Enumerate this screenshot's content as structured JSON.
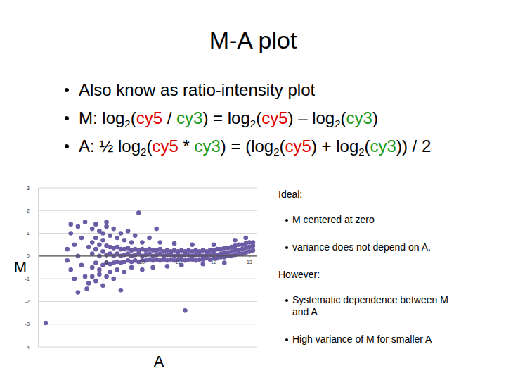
{
  "title": "M-A plot",
  "bullets": [
    [
      {
        "text": "Also know as ratio-intensity plot"
      }
    ],
    [
      {
        "text": "M: log"
      },
      {
        "text": "2",
        "sub": true
      },
      {
        "text": "("
      },
      {
        "text": "cy5",
        "color": "#e00000"
      },
      {
        "text": " / "
      },
      {
        "text": "cy3",
        "color": "#1a9a1a"
      },
      {
        "text": ") = log"
      },
      {
        "text": "2",
        "sub": true
      },
      {
        "text": "("
      },
      {
        "text": "cy5",
        "color": "#e00000"
      },
      {
        "text": ") – log"
      },
      {
        "text": "2",
        "sub": true
      },
      {
        "text": "("
      },
      {
        "text": "cy3",
        "color": "#1a9a1a"
      },
      {
        "text": ")"
      }
    ],
    [
      {
        "text": "A: ½ log"
      },
      {
        "text": "2",
        "sub": true
      },
      {
        "text": "("
      },
      {
        "text": "cy5",
        "color": "#e00000"
      },
      {
        "text": " * "
      },
      {
        "text": "cy3",
        "color": "#1a9a1a"
      },
      {
        "text": ") = (log"
      },
      {
        "text": "2",
        "sub": true
      },
      {
        "text": "("
      },
      {
        "text": "cy5",
        "color": "#e00000"
      },
      {
        "text": ") + log"
      },
      {
        "text": "2",
        "sub": true
      },
      {
        "text": "("
      },
      {
        "text": "cy3",
        "color": "#1a9a1a"
      },
      {
        "text": ")) / 2"
      }
    ]
  ],
  "notes": [
    {
      "heading": "Ideal:",
      "items": [
        "M centered at zero",
        "variance does not depend on A."
      ]
    },
    {
      "heading": "However:",
      "items": [
        "Systematic dependence between M and A",
        "High variance of M for smaller A"
      ]
    }
  ],
  "chart_data": {
    "type": "scatter",
    "x_label": "A",
    "y_label": "M",
    "color": "#6b5ca5",
    "marker": "circle",
    "grid": true,
    "xlim": [
      7.1,
      13.2
    ],
    "xticks": [
      9,
      10,
      11,
      12,
      13
    ],
    "ylim": [
      -4,
      3
    ],
    "yticks": [
      -4,
      -3,
      -2,
      -1,
      0,
      1,
      2,
      3
    ],
    "x": [
      8.6,
      8.6,
      8.6,
      8.7,
      8.7,
      8.7,
      8.8,
      8.8,
      8.8,
      8.9,
      8.9,
      8.9,
      9.0,
      9.0,
      9.0,
      9.1,
      9.1,
      9.1,
      9.2,
      9.2,
      9.2,
      9.3,
      9.3,
      9.3,
      9.4,
      9.4,
      9.4,
      9.5,
      9.5,
      9.5,
      9.6,
      9.6,
      9.6,
      9.7,
      9.7,
      9.7,
      9.8,
      9.8,
      9.8,
      9.9,
      9.9,
      9.9,
      10.0,
      10.0,
      10.0,
      10.1,
      10.1,
      10.1,
      10.2,
      10.2,
      10.2,
      10.3,
      10.3,
      10.3,
      10.4,
      10.4,
      10.4,
      10.5,
      10.5,
      10.5,
      10.6,
      10.6,
      10.6,
      10.7,
      10.7,
      10.7,
      10.8,
      10.8,
      10.8,
      10.9,
      10.9,
      10.9,
      11.0,
      11.0,
      11.0,
      11.1,
      11.1,
      11.1,
      11.2,
      11.2,
      11.2,
      11.3,
      11.3,
      11.3,
      11.4,
      11.4,
      11.4,
      11.5,
      11.5,
      11.5,
      11.6,
      11.6,
      11.6,
      11.7,
      11.7,
      11.7,
      11.8,
      11.8,
      11.8,
      11.9,
      11.9,
      11.9,
      12.0,
      12.0,
      12.0,
      12.1,
      12.1,
      12.1,
      12.2,
      12.2,
      12.2,
      12.3,
      12.3,
      12.3,
      12.4,
      12.4,
      12.4,
      12.5,
      12.5,
      12.5,
      12.6,
      12.6,
      12.6,
      12.7,
      12.7,
      12.7,
      12.8,
      12.8,
      12.8,
      12.9,
      12.9,
      12.9,
      13.0,
      13.0,
      13.0,
      13.1,
      13.1,
      13.1,
      7.3,
      11.2,
      9.9,
      7.9,
      7.9,
      8.0,
      8.0,
      8.1,
      8.1,
      8.2,
      8.2,
      8.3,
      8.3,
      8.4,
      8.4,
      8.45,
      8.5,
      8.5,
      8.6,
      8.6,
      8.7,
      8.7,
      8.8,
      8.8,
      8.9,
      8.9,
      9.0,
      9.0,
      9.1,
      9.1,
      9.2,
      9.2,
      9.3,
      9.3,
      9.4,
      9.5,
      9.5,
      9.6,
      9.7,
      9.7,
      9.8,
      10.0,
      10.0,
      10.2,
      10.3,
      10.5,
      10.7,
      10.9,
      11.1,
      11.4,
      11.7,
      12.0,
      12.3,
      12.6,
      12.9,
      9.4,
      8.2,
      10.4,
      8.0,
      9.0
    ],
    "values": [
      -0.5,
      0.1,
      0.6,
      -0.3,
      0.3,
      0.8,
      -0.6,
      0.0,
      0.5,
      -0.4,
      0.2,
      0.7,
      -0.3,
      0.05,
      0.45,
      -0.35,
      0.1,
      0.4,
      -0.3,
      0.0,
      0.35,
      -0.25,
      0.1,
      0.4,
      -0.3,
      0.0,
      0.3,
      -0.25,
      0.05,
      0.3,
      -0.2,
      0.1,
      0.35,
      -0.25,
      0.0,
      0.25,
      -0.2,
      0.05,
      0.3,
      -0.25,
      0.1,
      0.25,
      -0.2,
      0.0,
      0.3,
      -0.2,
      0.05,
      0.25,
      -0.15,
      0.1,
      0.3,
      -0.2,
      0.0,
      0.25,
      -0.15,
      0.05,
      0.25,
      -0.2,
      0.1,
      0.3,
      -0.15,
      0.0,
      0.2,
      -0.2,
      0.05,
      0.25,
      -0.15,
      0.05,
      0.2,
      -0.2,
      0.0,
      0.25,
      -0.15,
      0.05,
      0.2,
      -0.15,
      0.0,
      0.25,
      -0.2,
      0.05,
      0.2,
      -0.15,
      0.05,
      0.25,
      -0.15,
      0.0,
      0.2,
      -0.2,
      0.05,
      0.25,
      -0.15,
      0.05,
      0.2,
      -0.15,
      0.0,
      0.25,
      -0.1,
      0.05,
      0.2,
      -0.15,
      0.05,
      0.25,
      -0.1,
      0.1,
      0.25,
      -0.1,
      0.05,
      0.3,
      -0.05,
      0.1,
      0.3,
      -0.05,
      0.15,
      0.35,
      0.0,
      0.15,
      0.35,
      0.0,
      0.2,
      0.4,
      0.05,
      0.25,
      0.45,
      0.1,
      0.25,
      0.5,
      0.1,
      0.3,
      0.5,
      0.15,
      0.35,
      0.55,
      0.2,
      0.4,
      0.6,
      0.25,
      0.45,
      0.6,
      -2.95,
      -2.4,
      1.9,
      0.3,
      -0.2,
      1.0,
      -0.6,
      0.5,
      -1.0,
      1.3,
      0.0,
      -0.4,
      0.8,
      1.5,
      -0.9,
      -1.45,
      0.4,
      -1.2,
      1.2,
      -0.9,
      1.4,
      -1.1,
      1.1,
      -0.8,
      1.0,
      -1.3,
      1.3,
      -0.9,
      0.9,
      -0.7,
      1.2,
      -1.0,
      0.8,
      -0.6,
      1.0,
      0.7,
      -0.7,
      1.1,
      0.6,
      -0.5,
      0.9,
      0.6,
      -0.6,
      0.8,
      -0.5,
      0.6,
      -0.45,
      0.55,
      -0.4,
      0.5,
      -0.35,
      0.5,
      -0.3,
      0.7,
      0.8,
      -1.5,
      -1.6,
      1.2,
      1.4,
      1.5
    ]
  }
}
